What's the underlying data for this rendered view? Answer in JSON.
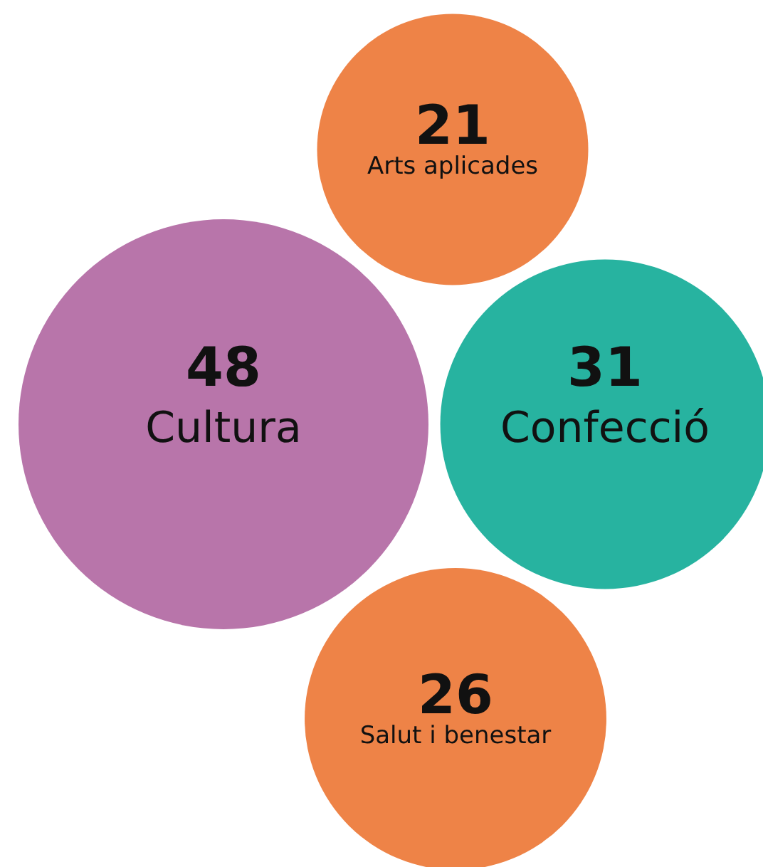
{
  "chart_data": {
    "type": "other",
    "categories": [
      "Arts aplicades",
      "Cultura",
      "Confecció",
      "Salut i benestar"
    ],
    "values": [
      21,
      48,
      31,
      26
    ],
    "colors": [
      "#ee8347",
      "#b875aa",
      "#27b3a0",
      "#ee8347"
    ],
    "data_labels": true
  }
}
